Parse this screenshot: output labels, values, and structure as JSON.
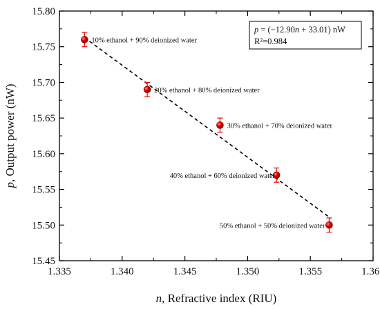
{
  "chart_data": {
    "type": "scatter",
    "xlabel_var": "n",
    "xlabel": ", Refractive index (RIU)",
    "ylabel_var": "p",
    "ylabel": ", Output power (nW)",
    "xlim": [
      1.335,
      1.36
    ],
    "ylim": [
      15.45,
      15.8
    ],
    "x_ticks": [
      "1.335",
      "1.340",
      "1.345",
      "1.350",
      "1.355",
      "1.360"
    ],
    "y_ticks": [
      "15.45",
      "15.50",
      "15.55",
      "15.60",
      "15.65",
      "15.70",
      "15.75",
      "15.80"
    ],
    "grid": false,
    "marker_color": "#e60000",
    "fit_line_color": "#000000",
    "points": [
      {
        "x": 1.337,
        "y": 15.76,
        "err": 0.01,
        "label": "10% ethanol + 90% deionized water"
      },
      {
        "x": 1.342,
        "y": 15.69,
        "err": 0.01,
        "label": "20% ethanol + 80% deionized water"
      },
      {
        "x": 1.3478,
        "y": 15.64,
        "err": 0.01,
        "label": "30% ethanol + 70% deionized water"
      },
      {
        "x": 1.3523,
        "y": 15.57,
        "err": 0.01,
        "label": "40% ethanol + 60% deionized water"
      },
      {
        "x": 1.3565,
        "y": 15.5,
        "err": 0.01,
        "label": "50% ethanol + 50% deionized water"
      }
    ],
    "fit": {
      "slope": -12.9,
      "intercept": 33.01,
      "x_range": [
        1.337,
        1.3565
      ]
    },
    "equation": {
      "p_var": "p",
      "eq_mid": " = (−12.90",
      "n_var": "n",
      "eq_end": " + 33.01) nW",
      "r2": "R²=0.984"
    }
  }
}
